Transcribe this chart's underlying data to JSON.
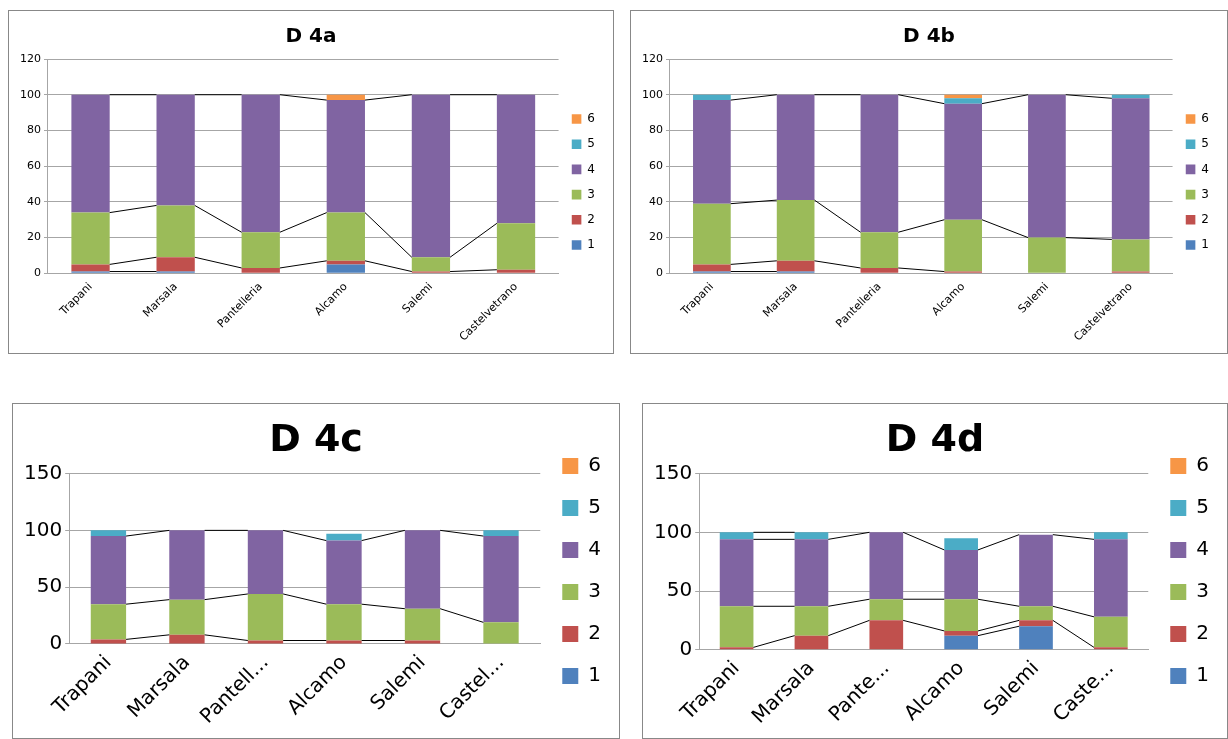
{
  "chart_data": [
    {
      "type": "bar",
      "title": "D 4a",
      "stacked": true,
      "categories": [
        "Trapani",
        "Marsala",
        "Pantelleria",
        "Alcamo",
        "Salemi",
        "Castelvetrano"
      ],
      "ylim": [
        0,
        120
      ],
      "yticks": [
        0,
        20,
        40,
        60,
        80,
        100,
        120
      ],
      "grid": "y",
      "legend": "right",
      "series": [
        {
          "name": "1",
          "color": "#4f81bd",
          "values": [
            1,
            1,
            0,
            5,
            0,
            0
          ]
        },
        {
          "name": "2",
          "color": "#c0504d",
          "values": [
            4,
            8,
            3,
            2,
            1,
            2
          ]
        },
        {
          "name": "3",
          "color": "#9bbb59",
          "values": [
            29,
            29,
            20,
            27,
            8,
            26
          ]
        },
        {
          "name": "4",
          "color": "#8064a2",
          "values": [
            66,
            62,
            77,
            63,
            91,
            72
          ]
        },
        {
          "name": "5",
          "color": "#4bacc6",
          "values": [
            0,
            0,
            0,
            0,
            0,
            0
          ]
        },
        {
          "name": "6",
          "color": "#f79646",
          "values": [
            0,
            0,
            0,
            3,
            0,
            0
          ]
        }
      ]
    },
    {
      "type": "bar",
      "title": "D 4b",
      "stacked": true,
      "categories": [
        "Trapani",
        "Marsala",
        "Pantelleria",
        "Alcamo",
        "Salemi",
        "Castelvetrano"
      ],
      "ylim": [
        0,
        120
      ],
      "yticks": [
        0,
        20,
        40,
        60,
        80,
        100,
        120
      ],
      "grid": "y",
      "legend": "right",
      "series": [
        {
          "name": "1",
          "color": "#4f81bd",
          "values": [
            1,
            1,
            0,
            0,
            0,
            0
          ]
        },
        {
          "name": "2",
          "color": "#c0504d",
          "values": [
            4,
            6,
            3,
            1,
            0,
            1
          ]
        },
        {
          "name": "3",
          "color": "#9bbb59",
          "values": [
            34,
            34,
            20,
            29,
            20,
            18
          ]
        },
        {
          "name": "4",
          "color": "#8064a2",
          "values": [
            58,
            59,
            77,
            65,
            80,
            79
          ]
        },
        {
          "name": "5",
          "color": "#4bacc6",
          "values": [
            3,
            0,
            0,
            3,
            0,
            2
          ]
        },
        {
          "name": "6",
          "color": "#f79646",
          "values": [
            0,
            0,
            0,
            2,
            0,
            0
          ]
        }
      ]
    },
    {
      "type": "bar",
      "title": "D 4c",
      "stacked": true,
      "categories": [
        "Trapani",
        "Marsala",
        "Pantell...",
        "Alcamo",
        "Salemi",
        "Castel..."
      ],
      "ylim": [
        0,
        150
      ],
      "yticks": [
        0,
        50,
        100,
        150
      ],
      "grid": "y",
      "legend": "right",
      "series": [
        {
          "name": "1",
          "color": "#4f81bd",
          "values": [
            0,
            0,
            0,
            0,
            0,
            0
          ]
        },
        {
          "name": "2",
          "color": "#c0504d",
          "values": [
            4,
            8,
            3,
            3,
            3,
            0
          ]
        },
        {
          "name": "3",
          "color": "#9bbb59",
          "values": [
            31,
            31,
            41,
            32,
            28,
            19
          ]
        },
        {
          "name": "4",
          "color": "#8064a2",
          "values": [
            60,
            61,
            56,
            56,
            69,
            76
          ]
        },
        {
          "name": "5",
          "color": "#4bacc6",
          "values": [
            5,
            0,
            0,
            6,
            0,
            5
          ]
        },
        {
          "name": "6",
          "color": "#f79646",
          "values": [
            0,
            0,
            0,
            0,
            0,
            0
          ]
        }
      ]
    },
    {
      "type": "bar",
      "title": "D 4d",
      "stacked": true,
      "categories": [
        "Trapani",
        "Marsala",
        "Pante...",
        "Alcamo",
        "Salemi",
        "Caste..."
      ],
      "ylim": [
        0,
        150
      ],
      "yticks": [
        0,
        50,
        100,
        150
      ],
      "grid": "y",
      "legend": "right",
      "series": [
        {
          "name": "1",
          "color": "#4f81bd",
          "values": [
            0,
            0,
            0,
            12,
            20,
            0
          ]
        },
        {
          "name": "2",
          "color": "#c0504d",
          "values": [
            2,
            12,
            25,
            4,
            5,
            2
          ]
        },
        {
          "name": "3",
          "color": "#9bbb59",
          "values": [
            35,
            25,
            18,
            27,
            12,
            26
          ]
        },
        {
          "name": "4",
          "color": "#8064a2",
          "values": [
            57,
            57,
            57,
            42,
            61,
            66
          ]
        },
        {
          "name": "5",
          "color": "#4bacc6",
          "values": [
            6,
            6,
            0,
            10,
            0,
            6
          ]
        },
        {
          "name": "6",
          "color": "#f79646",
          "values": [
            0,
            0,
            0,
            0,
            0,
            0
          ]
        }
      ]
    }
  ]
}
